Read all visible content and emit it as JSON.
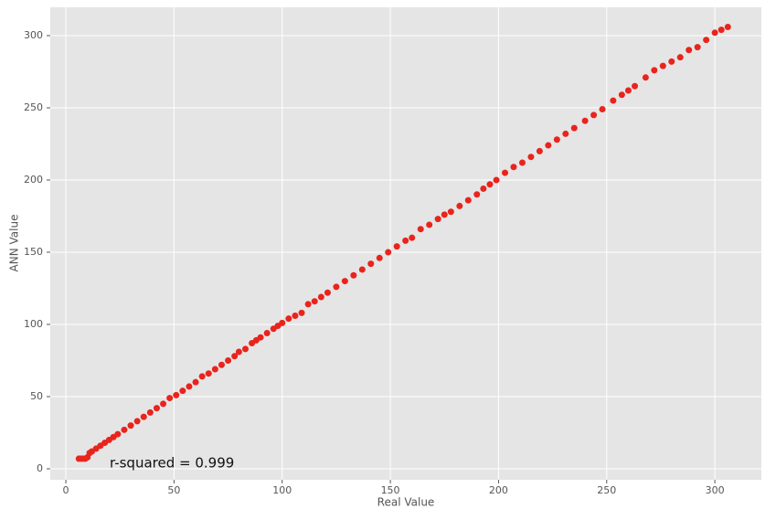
{
  "chart_data": {
    "type": "scatter",
    "xlabel": "Real Value",
    "ylabel": "ANN Value",
    "annotation": "r-squared = 0.999",
    "color": "#e8241c",
    "grid": true,
    "xlim": [
      -7.2,
      321.5
    ],
    "ylim": [
      -7.6,
      319.6
    ],
    "xticks": [
      0,
      50,
      100,
      150,
      200,
      250,
      300
    ],
    "yticks": [
      0,
      50,
      100,
      150,
      200,
      250,
      300
    ],
    "x": [
      6,
      7,
      8,
      9,
      10,
      11,
      12,
      14,
      16,
      18,
      20,
      22,
      24,
      27,
      30,
      33,
      36,
      39,
      42,
      45,
      48,
      51,
      54,
      57,
      60,
      63,
      66,
      69,
      72,
      75,
      78,
      80,
      83,
      86,
      88,
      90,
      93,
      96,
      98,
      100,
      103,
      106,
      109,
      112,
      115,
      118,
      121,
      125,
      129,
      133,
      137,
      141,
      145,
      149,
      153,
      157,
      160,
      164,
      168,
      172,
      175,
      178,
      182,
      186,
      190,
      193,
      196,
      199,
      203,
      207,
      211,
      215,
      219,
      223,
      227,
      231,
      235,
      240,
      244,
      248,
      253,
      257,
      260,
      263,
      268,
      272,
      276,
      280,
      284,
      288,
      292,
      296,
      300,
      303,
      306
    ],
    "y": [
      7,
      7,
      7,
      7,
      8,
      11,
      12,
      14,
      16,
      18,
      20,
      22,
      24,
      27,
      30,
      33,
      36,
      39,
      42,
      45,
      49,
      51,
      54,
      57,
      60,
      64,
      66,
      69,
      72,
      75,
      78,
      81,
      83,
      87,
      89,
      91,
      94,
      97,
      99,
      101,
      104,
      106,
      108,
      114,
      116,
      119,
      122,
      126,
      130,
      134,
      138,
      142,
      146,
      150,
      154,
      158,
      160,
      166,
      169,
      173,
      176,
      178,
      182,
      186,
      190,
      194,
      197,
      200,
      205,
      209,
      212,
      216,
      220,
      224,
      228,
      232,
      236,
      241,
      245,
      249,
      255,
      259,
      262,
      265,
      271,
      276,
      279,
      282,
      285,
      290,
      292,
      297,
      302,
      304,
      306
    ]
  }
}
